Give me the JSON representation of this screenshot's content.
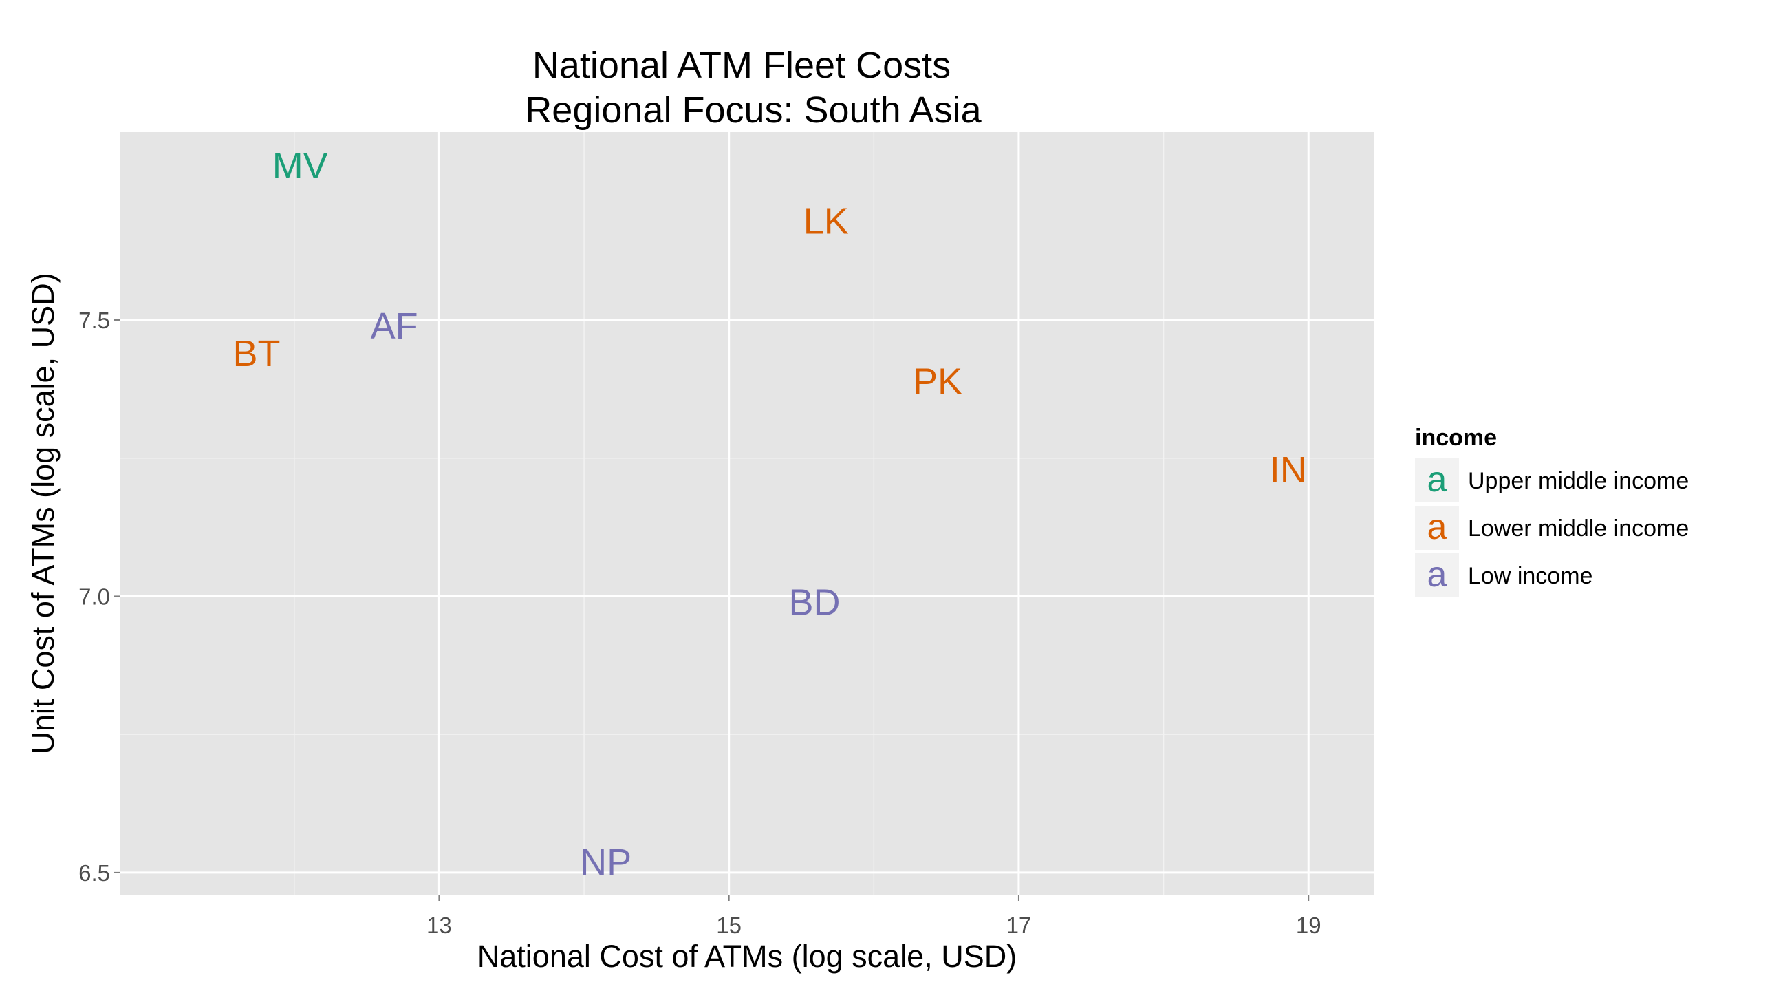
{
  "chart_data": {
    "type": "scatter",
    "title": "National ATM Fleet Costs",
    "subtitle": "Regional Focus: South Asia",
    "xlabel": "National Cost of ATMs (log scale, USD)",
    "ylabel": "Unit Cost of ATMs (log scale, USD)",
    "xlim": [
      10.8,
      19.45
    ],
    "ylim": [
      6.46,
      7.84
    ],
    "x_ticks": [
      13,
      15,
      17,
      19
    ],
    "x_tick_labels": [
      "13",
      "15",
      "17",
      "19"
    ],
    "x_minor_ticks": [
      12,
      14,
      16,
      18
    ],
    "y_ticks": [
      6.5,
      7.0,
      7.5
    ],
    "y_tick_labels": [
      "6.5",
      "7.0",
      "7.5"
    ],
    "y_minor_ticks": [
      6.75,
      7.25
    ],
    "grid": true,
    "legend_position": "right",
    "legend": {
      "title": "income",
      "key_glyph": "a",
      "entries": [
        {
          "name": "Upper middle income",
          "color": "#1b9e77"
        },
        {
          "name": "Lower middle income",
          "color": "#d95f02"
        },
        {
          "name": "Low income",
          "color": "#7570b3"
        }
      ]
    },
    "points": [
      {
        "label": "MV",
        "x": 12.04,
        "y": 7.78,
        "income": "Upper middle income"
      },
      {
        "label": "LK",
        "x": 15.67,
        "y": 7.68,
        "income": "Lower middle income"
      },
      {
        "label": "AF",
        "x": 12.69,
        "y": 7.49,
        "income": "Low income"
      },
      {
        "label": "BT",
        "x": 11.74,
        "y": 7.44,
        "income": "Lower middle income"
      },
      {
        "label": "PK",
        "x": 16.44,
        "y": 7.39,
        "income": "Lower middle income"
      },
      {
        "label": "IN",
        "x": 18.86,
        "y": 7.23,
        "income": "Lower middle income"
      },
      {
        "label": "BD",
        "x": 15.59,
        "y": 6.99,
        "income": "Low income"
      },
      {
        "label": "NP",
        "x": 14.15,
        "y": 6.52,
        "income": "Low income"
      }
    ]
  }
}
